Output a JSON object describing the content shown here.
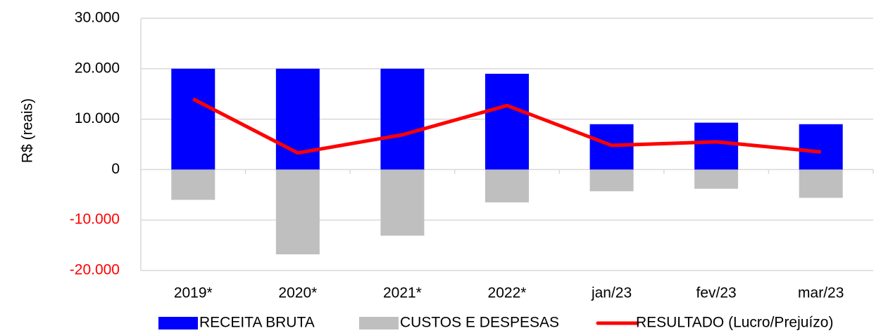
{
  "chart_data": {
    "type": "bar_line",
    "y_label": "R$ (reais)",
    "categories": [
      "2019*",
      "2020*",
      "2021*",
      "2022*",
      "jan/23",
      "fev/23",
      "mar/23"
    ],
    "series": [
      {
        "name": "RECEITA BRUTA",
        "type": "bar",
        "color": "#0000ff",
        "values": [
          20000,
          20000,
          20000,
          19000,
          9000,
          9300,
          9000
        ]
      },
      {
        "name": "CUSTOS E DESPESAS",
        "type": "bar",
        "color": "#bfbfbf",
        "values": [
          -6000,
          -16800,
          -13100,
          -6500,
          -4300,
          -3800,
          -5600
        ]
      },
      {
        "name": "RESULTADO (Lucro/Prejuízo)",
        "type": "line",
        "color": "#ff0000",
        "values": [
          14000,
          3300,
          6900,
          12700,
          4800,
          5500,
          3500
        ]
      }
    ],
    "ylim": [
      -20000,
      30000
    ],
    "yticks": [
      {
        "value": -20000,
        "label": "-20.000"
      },
      {
        "value": -10000,
        "label": "-10.000"
      },
      0,
      {
        "value": 10000,
        "label": "10.000"
      },
      {
        "value": 20000,
        "label": "20.000"
      },
      {
        "value": 30000,
        "label": "30.000"
      }
    ],
    "negative_tick_color": "#ff0000",
    "grid": true,
    "legend": "bottom"
  }
}
